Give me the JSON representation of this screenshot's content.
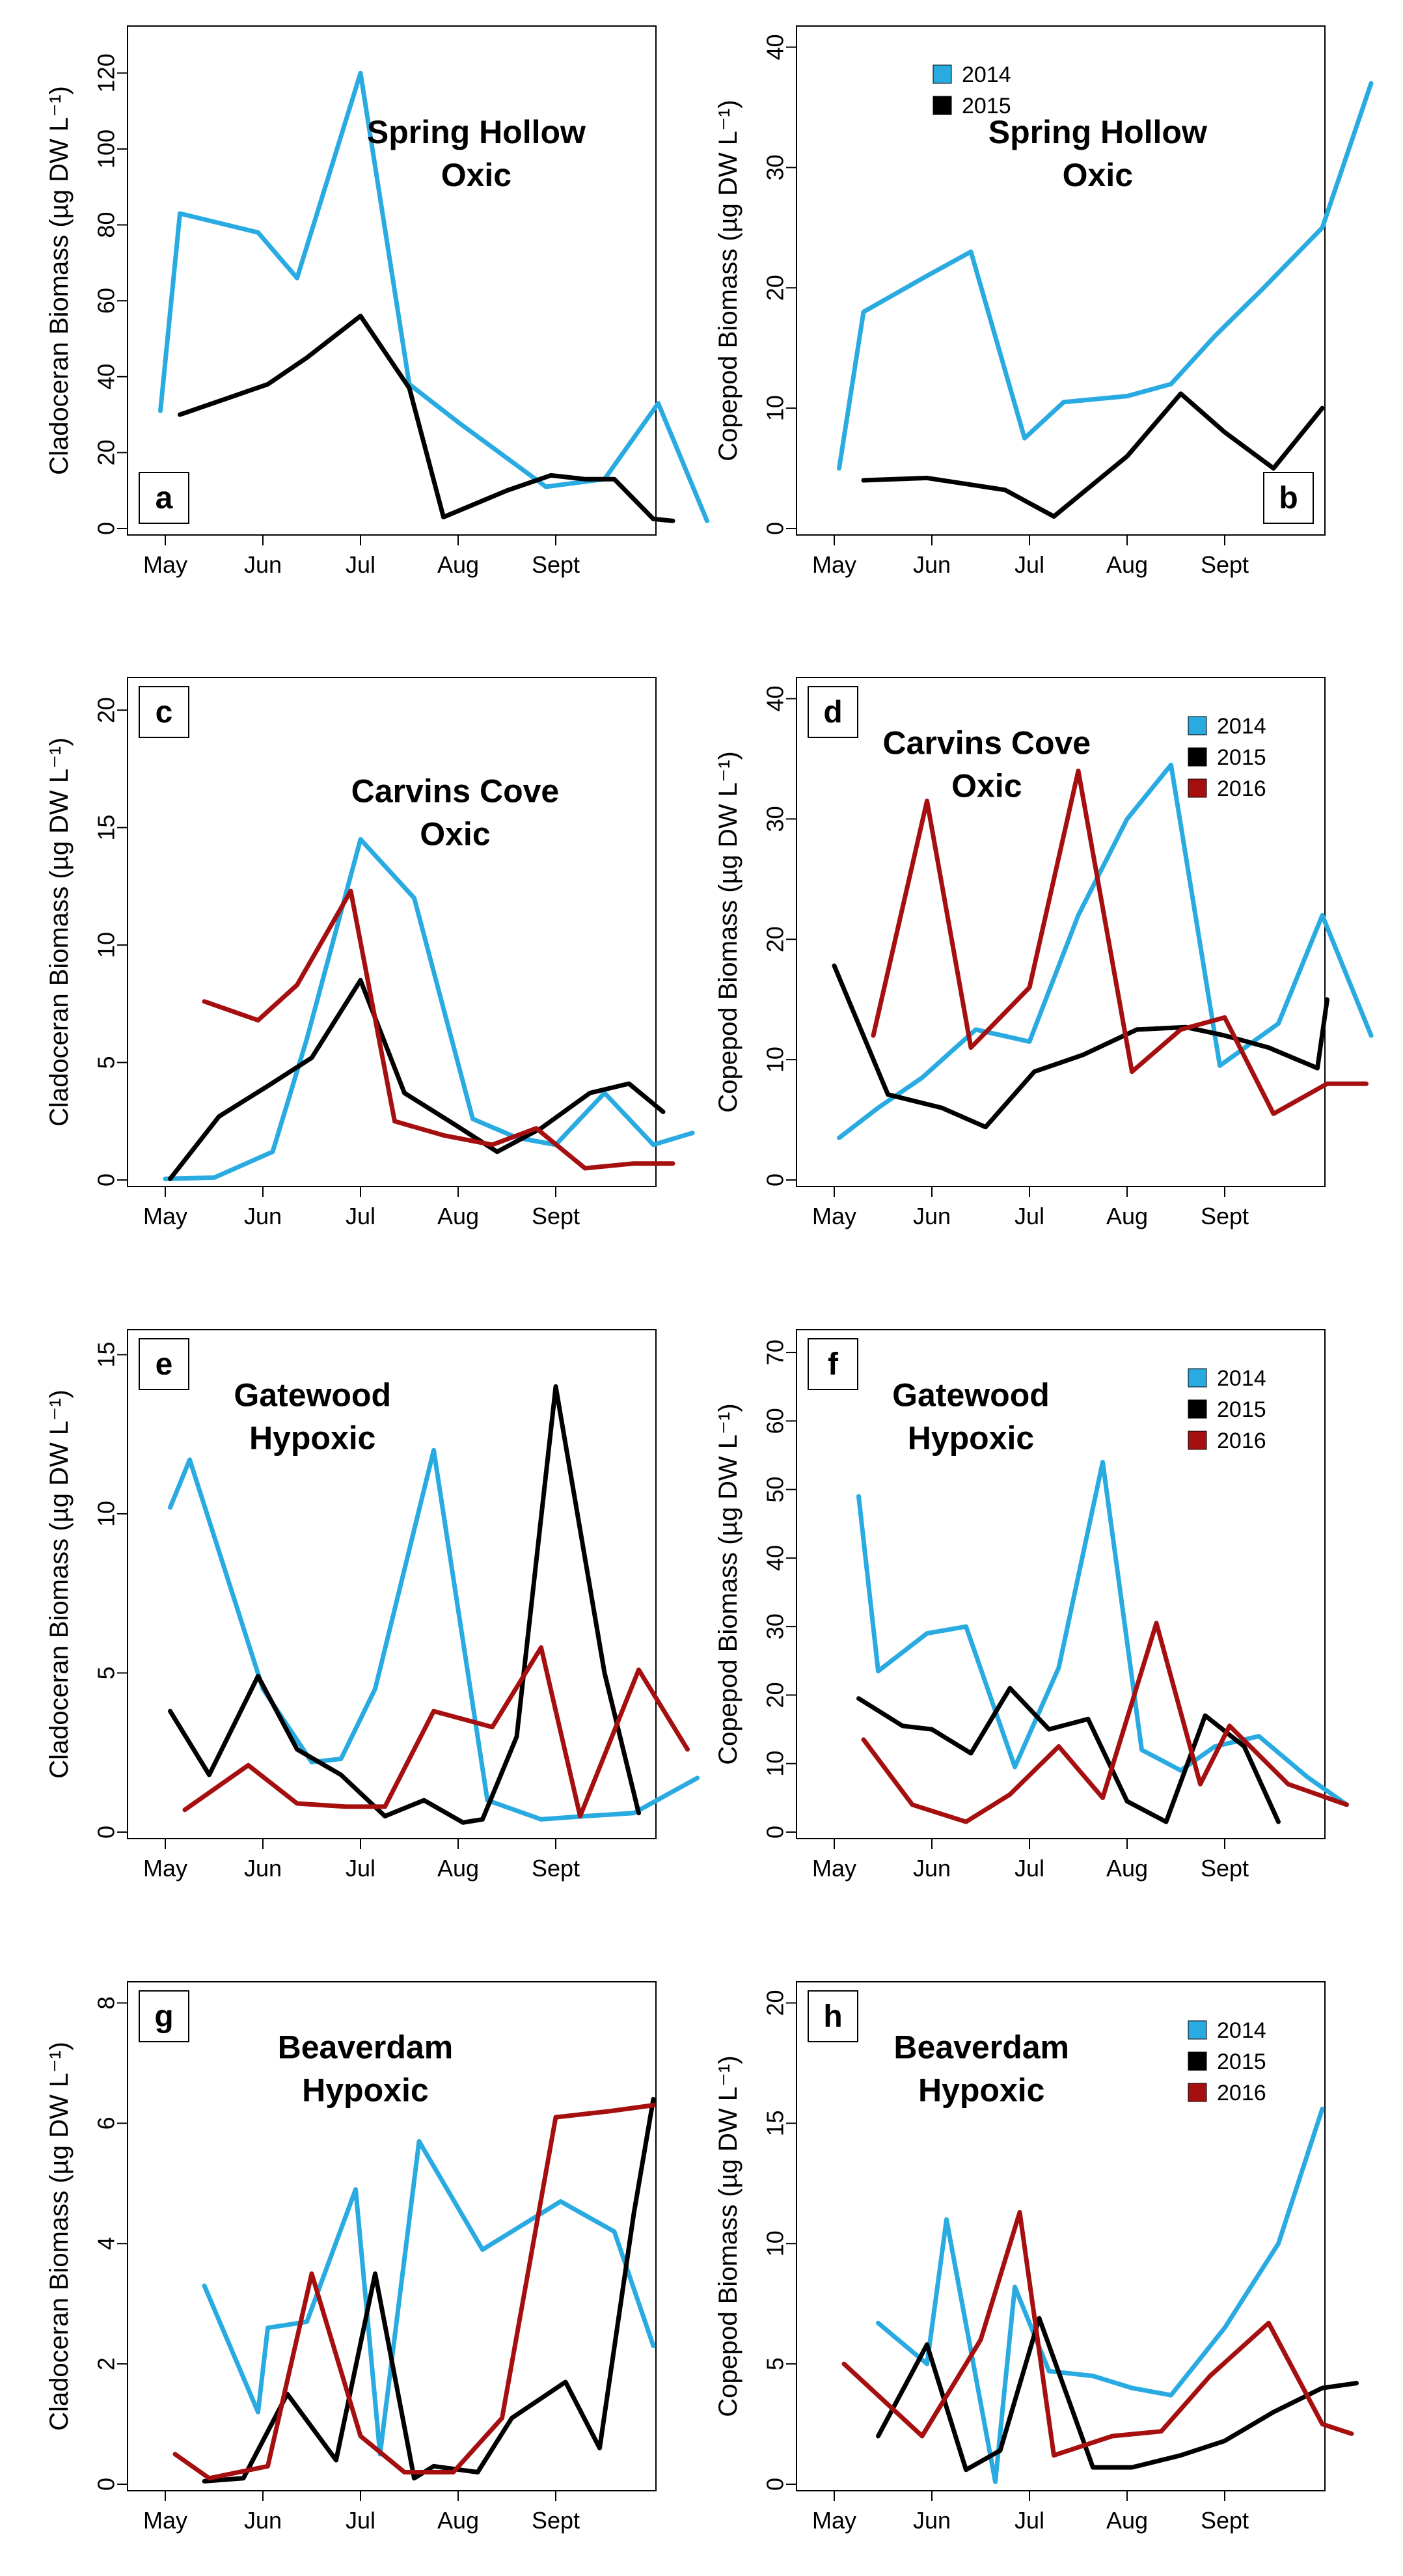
{
  "figure": {
    "months": [
      "May",
      "Jun",
      "Jul",
      "Aug",
      "Sept"
    ]
  },
  "colors": {
    "2014": "#29abe2",
    "2015": "#000000",
    "2016": "#a50f0f"
  },
  "chart_data": [
    {
      "panel": "a",
      "type": "line",
      "title": "Spring Hollow\nOxic",
      "ylabel": "Cladoceran Biomass (µg DW L⁻¹)",
      "xlabel": "",
      "xticks": [
        "May",
        "Jun",
        "Jul",
        "Aug",
        "Sept"
      ],
      "ylim": [
        0,
        130
      ],
      "yticks": [
        0,
        20,
        40,
        60,
        80,
        100,
        120
      ],
      "legend": [],
      "series": [
        {
          "name": "2014",
          "color": "#29abe2",
          "x": [
            -0.05,
            0.15,
            0.95,
            1.35,
            2.0,
            2.5,
            3.0,
            3.9,
            4.5,
            5.05,
            5.55
          ],
          "y": [
            31,
            83,
            78,
            66,
            120,
            38,
            28,
            11,
            13,
            33,
            2
          ]
        },
        {
          "name": "2015",
          "color": "#000000",
          "x": [
            0.15,
            0.6,
            1.05,
            1.45,
            2.0,
            2.5,
            2.85,
            3.5,
            3.95,
            4.3,
            4.6,
            5.0,
            5.2
          ],
          "y": [
            30,
            34,
            38,
            45,
            56,
            37,
            3,
            10,
            14,
            13,
            13,
            2.5,
            2
          ]
        }
      ]
    },
    {
      "panel": "b",
      "type": "line",
      "title": "Spring Hollow\nOxic",
      "ylabel": "Copepod Biomass (µg DW L⁻¹)",
      "xlabel": "",
      "xticks": [
        "May",
        "Jun",
        "Jul",
        "Aug",
        "Sept"
      ],
      "ylim": [
        0,
        41
      ],
      "yticks": [
        0,
        10,
        20,
        30,
        40
      ],
      "legend": [
        {
          "label": "2014",
          "color": "#29abe2"
        },
        {
          "label": "2015",
          "color": "#000000"
        }
      ],
      "series": [
        {
          "name": "2014",
          "color": "#29abe2",
          "x": [
            0.05,
            0.3,
            0.95,
            1.4,
            1.95,
            2.35,
            3.0,
            3.45,
            3.9,
            4.4,
            5.0,
            5.5
          ],
          "y": [
            5,
            18,
            21,
            23,
            7.5,
            10.5,
            11,
            12,
            16,
            20,
            25,
            37
          ]
        },
        {
          "name": "2015",
          "color": "#000000",
          "x": [
            0.3,
            0.95,
            1.35,
            1.75,
            2.25,
            3.0,
            3.55,
            4.0,
            4.5,
            5.0
          ],
          "y": [
            4,
            4.2,
            3.7,
            3.2,
            1,
            6,
            11.2,
            8,
            5,
            10
          ]
        }
      ]
    },
    {
      "panel": "c",
      "type": "line",
      "title": "Carvins Cove\nOxic",
      "ylabel": "Cladoceran Biomass (µg DW L⁻¹)",
      "xlabel": "",
      "xticks": [
        "May",
        "Jun",
        "Jul",
        "Aug",
        "Sept"
      ],
      "ylim": [
        0,
        21
      ],
      "yticks": [
        0,
        5,
        10,
        15,
        20
      ],
      "legend": [],
      "series": [
        {
          "name": "2014",
          "color": "#29abe2",
          "x": [
            0.0,
            0.5,
            1.1,
            1.45,
            2.0,
            2.55,
            3.15,
            3.6,
            4.0,
            4.5,
            5.0,
            5.4
          ],
          "y": [
            0.05,
            0.1,
            1.2,
            6,
            14.5,
            12,
            2.6,
            1.8,
            1.5,
            3.7,
            1.5,
            2
          ]
        },
        {
          "name": "2015",
          "color": "#000000",
          "x": [
            0.05,
            0.55,
            1.05,
            1.5,
            2.0,
            2.45,
            2.95,
            3.4,
            3.85,
            4.35,
            4.75,
            5.1
          ],
          "y": [
            0.05,
            2.7,
            4,
            5.2,
            8.5,
            3.7,
            2.4,
            1.2,
            2.2,
            3.7,
            4.1,
            2.9
          ]
        },
        {
          "name": "2016",
          "color": "#a50f0f",
          "x": [
            0.4,
            0.95,
            1.35,
            1.9,
            2.35,
            2.85,
            3.35,
            3.8,
            4.3,
            4.8,
            5.2
          ],
          "y": [
            7.6,
            6.8,
            8.3,
            12.3,
            2.5,
            1.9,
            1.5,
            2.2,
            0.5,
            0.7,
            0.7
          ]
        }
      ]
    },
    {
      "panel": "d",
      "type": "line",
      "title": "Carvins Cove\nOxic",
      "ylabel": "Copepod Biomass (µg DW L⁻¹)",
      "xlabel": "",
      "xticks": [
        "May",
        "Jun",
        "Jul",
        "Aug",
        "Sept"
      ],
      "ylim": [
        0,
        41
      ],
      "yticks": [
        0,
        10,
        20,
        30,
        40
      ],
      "legend": [
        {
          "label": "2014",
          "color": "#29abe2"
        },
        {
          "label": "2015",
          "color": "#000000"
        },
        {
          "label": "2016",
          "color": "#a50f0f"
        }
      ],
      "series": [
        {
          "name": "2014",
          "color": "#29abe2",
          "x": [
            0.05,
            0.45,
            0.9,
            1.45,
            2.0,
            2.5,
            3.0,
            3.45,
            3.95,
            4.55,
            5.0,
            5.5
          ],
          "y": [
            3.5,
            6,
            8.5,
            12.5,
            11.5,
            22,
            30,
            34.5,
            9.5,
            13,
            22,
            12
          ]
        },
        {
          "name": "2015",
          "color": "#000000",
          "x": [
            0.0,
            0.55,
            1.1,
            1.55,
            2.05,
            2.55,
            3.1,
            3.6,
            4.0,
            4.45,
            4.95,
            5.05
          ],
          "y": [
            17.8,
            7.1,
            6,
            4.4,
            9,
            10.4,
            12.5,
            12.7,
            12,
            11,
            9.3,
            15
          ]
        },
        {
          "name": "2016",
          "color": "#a50f0f",
          "x": [
            0.4,
            0.95,
            1.4,
            2.0,
            2.5,
            3.05,
            3.55,
            4.0,
            4.5,
            5.05,
            5.45
          ],
          "y": [
            12,
            31.5,
            11,
            16,
            34,
            9,
            12.5,
            13.5,
            5.5,
            8,
            8
          ]
        }
      ]
    },
    {
      "panel": "e",
      "type": "line",
      "title": "Gatewood\nHypoxic",
      "ylabel": "Cladoceran Biomass (µg DW L⁻¹)",
      "xlabel": "",
      "xticks": [
        "May",
        "Jun",
        "Jul",
        "Aug",
        "Sept"
      ],
      "ylim": [
        0,
        15.5
      ],
      "yticks": [
        0,
        5,
        10,
        15
      ],
      "legend": [],
      "series": [
        {
          "name": "2014",
          "color": "#29abe2",
          "x": [
            0.05,
            0.25,
            1.0,
            1.5,
            1.8,
            2.15,
            2.75,
            3.3,
            3.85,
            4.3,
            4.8,
            5.45
          ],
          "y": [
            10.2,
            11.7,
            4.5,
            2.2,
            2.3,
            4.5,
            12,
            1,
            0.4,
            0.5,
            0.6,
            1.7
          ]
        },
        {
          "name": "2015",
          "color": "#000000",
          "x": [
            0.05,
            0.45,
            0.95,
            1.35,
            1.8,
            2.25,
            2.65,
            3.05,
            3.25,
            3.6,
            4.0,
            4.5,
            4.85
          ],
          "y": [
            3.8,
            1.8,
            4.9,
            2.6,
            1.8,
            0.5,
            1,
            0.3,
            0.4,
            3,
            14,
            5,
            0.6
          ]
        },
        {
          "name": "2016",
          "color": "#a50f0f",
          "x": [
            0.2,
            0.85,
            1.35,
            1.85,
            2.25,
            2.75,
            3.35,
            3.85,
            4.25,
            4.85,
            5.35
          ],
          "y": [
            0.7,
            2.1,
            0.9,
            0.8,
            0.8,
            3.8,
            3.3,
            5.8,
            0.5,
            5.1,
            2.6
          ]
        }
      ]
    },
    {
      "panel": "f",
      "type": "line",
      "title": "Gatewood\nHypoxic",
      "ylabel": "Copepod Biomass (µg DW L⁻¹)",
      "xlabel": "",
      "xticks": [
        "May",
        "Jun",
        "Jul",
        "Aug",
        "Sept"
      ],
      "ylim": [
        0,
        72
      ],
      "yticks": [
        0,
        10,
        20,
        30,
        40,
        50,
        60,
        70
      ],
      "legend": [
        {
          "label": "2014",
          "color": "#29abe2"
        },
        {
          "label": "2015",
          "color": "#000000"
        },
        {
          "label": "2016",
          "color": "#a50f0f"
        }
      ],
      "series": [
        {
          "name": "2014",
          "color": "#29abe2",
          "x": [
            0.25,
            0.45,
            0.95,
            1.35,
            1.85,
            2.3,
            2.75,
            3.15,
            3.55,
            3.9,
            4.35,
            4.85,
            5.25
          ],
          "y": [
            49,
            23.5,
            29,
            30,
            9.5,
            24,
            54,
            12,
            9,
            12.5,
            14,
            8,
            4
          ]
        },
        {
          "name": "2015",
          "color": "#000000",
          "x": [
            0.25,
            0.7,
            1.0,
            1.4,
            1.8,
            2.2,
            2.6,
            3.0,
            3.4,
            3.8,
            4.2,
            4.55
          ],
          "y": [
            19.5,
            15.5,
            15,
            11.5,
            21,
            15,
            16.5,
            4.5,
            1.5,
            17,
            12.5,
            1.5
          ]
        },
        {
          "name": "2016",
          "color": "#a50f0f",
          "x": [
            0.3,
            0.8,
            1.35,
            1.8,
            2.3,
            2.75,
            3.3,
            3.75,
            4.05,
            4.65,
            5.25
          ],
          "y": [
            13.5,
            4,
            1.5,
            5.5,
            12.5,
            5,
            30.5,
            7,
            15.5,
            7,
            4
          ]
        }
      ]
    },
    {
      "panel": "g",
      "type": "line",
      "title": "Beaverdam\nHypoxic",
      "ylabel": "Cladoceran Biomass (µg DW L⁻¹)",
      "xlabel": "",
      "xticks": [
        "May",
        "Jun",
        "Jul",
        "Aug",
        "Sept"
      ],
      "ylim": [
        0,
        8.2
      ],
      "yticks": [
        0,
        2,
        4,
        6,
        8
      ],
      "legend": [],
      "series": [
        {
          "name": "2014",
          "color": "#29abe2",
          "x": [
            0.4,
            0.95,
            1.05,
            1.45,
            1.95,
            2.2,
            2.6,
            3.25,
            4.05,
            4.6,
            5.0
          ],
          "y": [
            3.3,
            1.2,
            2.6,
            2.7,
            4.9,
            0.5,
            5.7,
            3.9,
            4.7,
            4.2,
            2.3
          ]
        },
        {
          "name": "2015",
          "color": "#000000",
          "x": [
            0.4,
            0.8,
            1.25,
            1.75,
            2.15,
            2.55,
            2.75,
            3.2,
            3.55,
            4.1,
            4.45,
            4.8,
            5.0
          ],
          "y": [
            0.05,
            0.1,
            1.5,
            0.4,
            3.5,
            0.1,
            0.3,
            0.2,
            1.1,
            1.7,
            0.6,
            4.5,
            6.4
          ]
        },
        {
          "name": "2016",
          "color": "#a50f0f",
          "x": [
            0.1,
            0.45,
            1.05,
            1.5,
            2.0,
            2.45,
            2.95,
            3.45,
            4.0,
            4.55,
            5.0
          ],
          "y": [
            0.5,
            0.1,
            0.3,
            3.5,
            0.8,
            0.2,
            0.2,
            1.1,
            6.1,
            6.2,
            6.3
          ]
        }
      ]
    },
    {
      "panel": "h",
      "type": "line",
      "title": "Beaverdam\nHypoxic",
      "ylabel": "Copepod Biomass (µg DW L⁻¹)",
      "xlabel": "",
      "xticks": [
        "May",
        "Jun",
        "Jul",
        "Aug",
        "Sept"
      ],
      "ylim": [
        0,
        20.5
      ],
      "yticks": [
        0,
        5,
        10,
        15,
        20
      ],
      "legend": [
        {
          "label": "2014",
          "color": "#29abe2"
        },
        {
          "label": "2015",
          "color": "#000000"
        },
        {
          "label": "2016",
          "color": "#a50f0f"
        }
      ],
      "series": [
        {
          "name": "2014",
          "color": "#29abe2",
          "x": [
            0.45,
            0.95,
            1.15,
            1.65,
            1.85,
            2.2,
            2.65,
            3.05,
            3.45,
            4.0,
            4.55,
            5.0
          ],
          "y": [
            6.7,
            5,
            11,
            0.1,
            8.2,
            4.7,
            4.5,
            4,
            3.7,
            6.5,
            10,
            15.6
          ]
        },
        {
          "name": "2015",
          "color": "#000000",
          "x": [
            0.45,
            0.95,
            1.35,
            1.7,
            2.1,
            2.65,
            3.05,
            3.55,
            4.0,
            4.5,
            5.0,
            5.35
          ],
          "y": [
            2,
            5.8,
            0.6,
            1.4,
            6.9,
            0.7,
            0.7,
            1.2,
            1.8,
            3,
            4,
            4.2
          ]
        },
        {
          "name": "2016",
          "color": "#a50f0f",
          "x": [
            0.1,
            0.9,
            1.5,
            1.9,
            2.25,
            2.85,
            3.35,
            3.85,
            4.45,
            5.0,
            5.3
          ],
          "y": [
            5,
            2,
            6,
            11.3,
            1.2,
            2,
            2.2,
            4.5,
            6.7,
            2.5,
            2.1
          ]
        }
      ]
    }
  ]
}
